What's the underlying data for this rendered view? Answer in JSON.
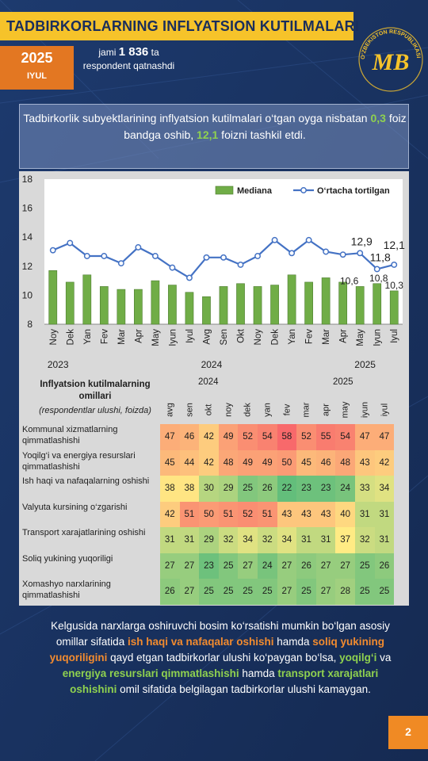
{
  "header": {
    "title": "TADBIRKORLARNING INFLYATSION KUTILMALARI",
    "year": "2025",
    "month": "IYUL",
    "respondents_pre": "jami",
    "respondents_count": "1 836",
    "respondents_post": "ta respondent qatnashdi",
    "logo_text": "O‘ZBEKISTON RESPUBLIKASI MARKAZIY BANKI",
    "logo_mark": "MB"
  },
  "intro": {
    "t1": "Tadbirkorlik subyektlarining inflyatsion kutilmalari o‘tgan oyga nisbatan ",
    "v1": "0,3",
    "t2": " foiz bandga oshib, ",
    "v2": "12,1",
    "t3": " foizni tashkil etdi."
  },
  "chart_data": [
    {
      "type": "bar",
      "categories": [
        "Noy",
        "Dek",
        "Yan",
        "Fev",
        "Mar",
        "Apr",
        "May",
        "Iyun",
        "Iyul",
        "Avg",
        "Sen",
        "Okt",
        "Noy",
        "Dek",
        "Yan",
        "Fev",
        "Mar",
        "Apr",
        "May",
        "Iyun",
        "Iyul"
      ],
      "year_labels": [
        "2023",
        "2024",
        "2025"
      ],
      "series": [
        {
          "name": "Mediana",
          "type": "bar",
          "color": "#70ad47",
          "values": [
            11.7,
            10.9,
            11.4,
            10.6,
            10.4,
            10.4,
            11.0,
            10.7,
            10.2,
            9.9,
            10.6,
            10.8,
            10.6,
            10.7,
            11.4,
            10.9,
            11.2,
            10.9,
            10.6,
            10.8,
            10.3
          ]
        },
        {
          "name": "O‘rtacha tortilgan",
          "type": "line",
          "color": "#4472c4",
          "values": [
            13.1,
            13.6,
            12.7,
            12.7,
            12.2,
            13.3,
            12.7,
            11.9,
            11.2,
            12.6,
            12.6,
            12.1,
            12.7,
            13.8,
            12.9,
            13.8,
            13.0,
            12.8,
            12.9,
            11.8,
            12.1
          ]
        }
      ],
      "data_labels": {
        "line_may": "12,9",
        "line_iyun": "11,8",
        "line_iyul": "12,1",
        "bar_may": "10,6",
        "bar_iyun": "10,8",
        "bar_iyul": "10,3"
      },
      "ylim": [
        8,
        18
      ],
      "yticks": [
        "8",
        "10",
        "12",
        "14",
        "16",
        "18"
      ],
      "legend": "top-right",
      "grid": false
    },
    {
      "type": "heatmap",
      "title": "Inflyatsion kutilmalarning omillari",
      "subtitle": "(respondentlar ulushi, foizda)",
      "year_labels": [
        "2024",
        "2025"
      ],
      "columns": [
        "avg",
        "sen",
        "okt",
        "noy",
        "dek",
        "yan",
        "fev",
        "mar",
        "apr",
        "may",
        "iyun",
        "iyul"
      ],
      "rows": [
        {
          "label": "Kommunal xizmatlarning qimmatlashishi",
          "values": [
            47,
            46,
            42,
            49,
            52,
            54,
            58,
            52,
            55,
            54,
            47,
            47
          ]
        },
        {
          "label": "Yoqilg‘i va energiya resurslari qimmatlashishi",
          "values": [
            45,
            44,
            42,
            48,
            49,
            49,
            50,
            45,
            46,
            48,
            43,
            42
          ]
        },
        {
          "label": "Ish haqi va nafaqalarning oshishi",
          "values": [
            38,
            38,
            30,
            29,
            25,
            26,
            22,
            23,
            23,
            24,
            33,
            34
          ]
        },
        {
          "label": "Valyuta kursining o‘zgarishi",
          "values": [
            42,
            51,
            50,
            51,
            52,
            51,
            43,
            43,
            43,
            40,
            31,
            31
          ]
        },
        {
          "label": "Transport xarajatlarining oshishi",
          "values": [
            31,
            31,
            29,
            32,
            34,
            32,
            34,
            31,
            31,
            37,
            32,
            31
          ]
        },
        {
          "label": "Soliq yukining yuqoriligi",
          "values": [
            27,
            27,
            23,
            25,
            27,
            24,
            27,
            26,
            27,
            27,
            25,
            26
          ]
        },
        {
          "label": "Xomashyo narxlarining qimmatlashishi",
          "values": [
            26,
            27,
            25,
            25,
            25,
            25,
            27,
            25,
            27,
            28,
            25,
            25
          ]
        }
      ]
    }
  ],
  "conclusion": {
    "p1": "Kelgusida narxlarga oshiruvchi bosim ko‘rsatishi mumkin bo‘lgan asosiy omillar sifatida ",
    "h1": "ish haqi va nafaqalar oshishi",
    "p2": " hamda ",
    "h2": "soliq yukining yuqoriligini",
    "p3": " qayd etgan tadbirkorlar ulushi ko‘paygan bo‘lsa, ",
    "h3": "yoqilg‘i",
    "p4": " va ",
    "h4": "energiya resurslari qimmatlashishi",
    "p5": " hamda ",
    "h5": "transport xarajatlari oshishini",
    "p6": " omil sifatida belgilagan tadbirkorlar ulushi kamaygan."
  },
  "page_number": "2",
  "colors": {
    "bar": "#70ad47",
    "line": "#4472c4",
    "accent_yellow": "#f6c32a",
    "accent_orange": "#e37722",
    "background": "#1a3464"
  }
}
